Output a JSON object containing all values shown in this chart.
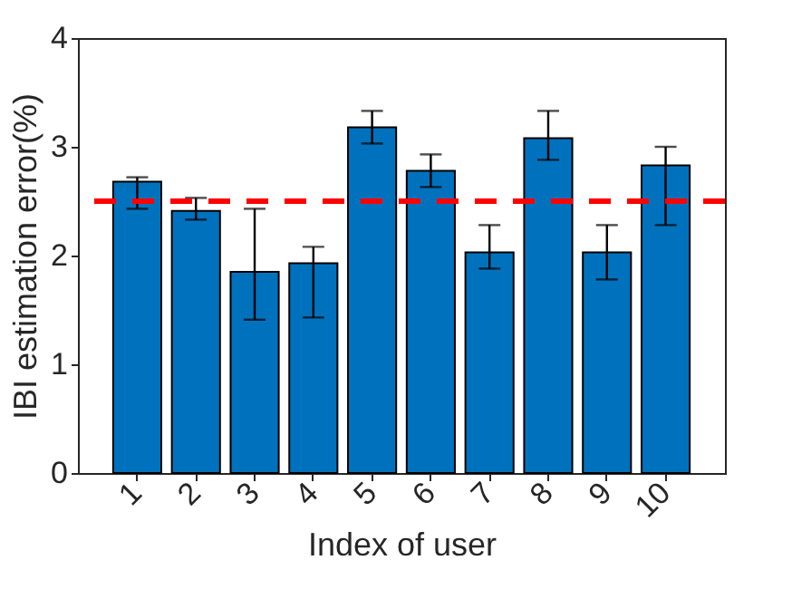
{
  "chart_data": {
    "type": "bar",
    "xlabel": "Index of user",
    "ylabel": "IBI estimation error(%)",
    "categories": [
      "1",
      "2",
      "3",
      "4",
      "5",
      "6",
      "7",
      "8",
      "9",
      "10"
    ],
    "values": [
      2.68,
      2.41,
      1.85,
      1.93,
      3.18,
      2.78,
      2.03,
      3.08,
      2.03,
      2.83
    ],
    "errors": [
      [
        2.43,
        2.72
      ],
      [
        2.33,
        2.53
      ],
      [
        1.41,
        2.43
      ],
      [
        1.43,
        2.08
      ],
      [
        3.03,
        3.33
      ],
      [
        2.63,
        2.93
      ],
      [
        1.88,
        2.28
      ],
      [
        2.88,
        3.33
      ],
      [
        1.78,
        2.28
      ],
      [
        2.28,
        3.0
      ]
    ],
    "color": "#0072bd",
    "ylim": [
      0,
      4
    ],
    "yticks": [
      0,
      1,
      2,
      3,
      4
    ],
    "grid": false,
    "ref_lines": [
      {
        "axis": "y",
        "value": 2.5,
        "color": "#ff0000",
        "line_style": "dashed"
      }
    ]
  }
}
